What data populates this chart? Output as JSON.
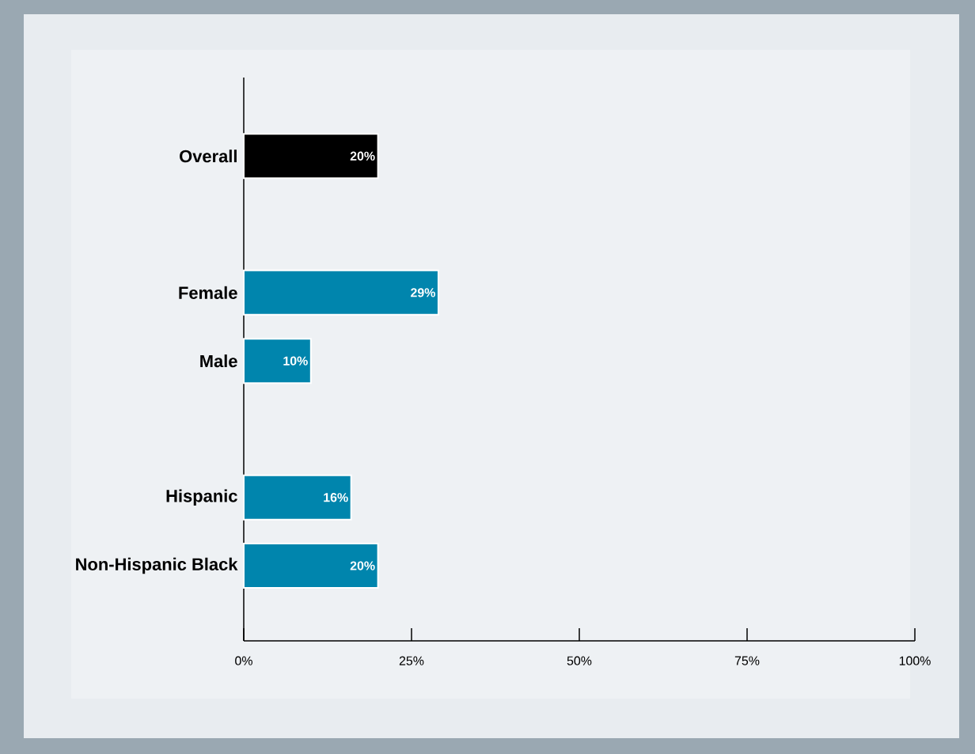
{
  "chart_data": {
    "type": "bar",
    "orientation": "horizontal",
    "categories": [
      "Overall",
      null,
      "Female",
      "Male",
      null,
      "Hispanic",
      "Non-Hispanic Black"
    ],
    "values": [
      20,
      null,
      29,
      10,
      null,
      16,
      20
    ],
    "colors": [
      "#000000",
      null,
      "#0085ad",
      "#0085ad",
      null,
      "#0085ad",
      "#0085ad"
    ],
    "value_labels": [
      "20%",
      null,
      "29%",
      "10%",
      null,
      "16%",
      "20%"
    ],
    "xlim": [
      0,
      100
    ],
    "xticks": [
      {
        "value": 0,
        "label": "0%"
      },
      {
        "value": 25,
        "label": "25%"
      },
      {
        "value": 50,
        "label": "50%"
      },
      {
        "value": 75,
        "label": "75%"
      },
      {
        "value": 100,
        "label": "100%"
      }
    ],
    "grid": false
  }
}
